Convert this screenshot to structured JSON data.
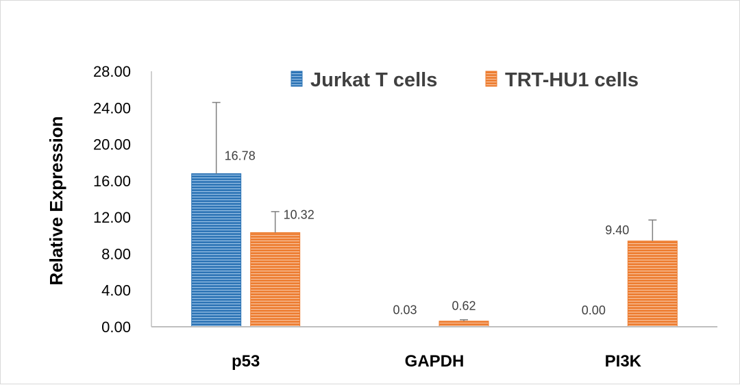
{
  "chart_data": {
    "type": "bar",
    "title": "",
    "xlabel": "",
    "ylabel": "Relative Expression",
    "categories": [
      "p53",
      "GAPDH",
      "PI3K"
    ],
    "ylim": [
      0,
      28
    ],
    "yticks": [
      "0.00",
      "4.00",
      "8.00",
      "12.00",
      "16.00",
      "20.00",
      "24.00",
      "28.00"
    ],
    "grid": false,
    "legend_position": "top-right",
    "series": [
      {
        "name": "Jurkat T cells",
        "color": "#2e75b6",
        "values": [
          16.78,
          0.03,
          0.0
        ],
        "labels": [
          "16.78",
          "0.03",
          "0.00"
        ],
        "error_plus": [
          7.8,
          0,
          0
        ]
      },
      {
        "name": "TRT-HU1 cells",
        "color": "#ed7d31",
        "values": [
          10.32,
          0.62,
          9.4
        ],
        "labels": [
          "10.32",
          "0.62",
          "9.40"
        ],
        "error_plus": [
          2.3,
          0.15,
          2.3
        ]
      }
    ]
  }
}
